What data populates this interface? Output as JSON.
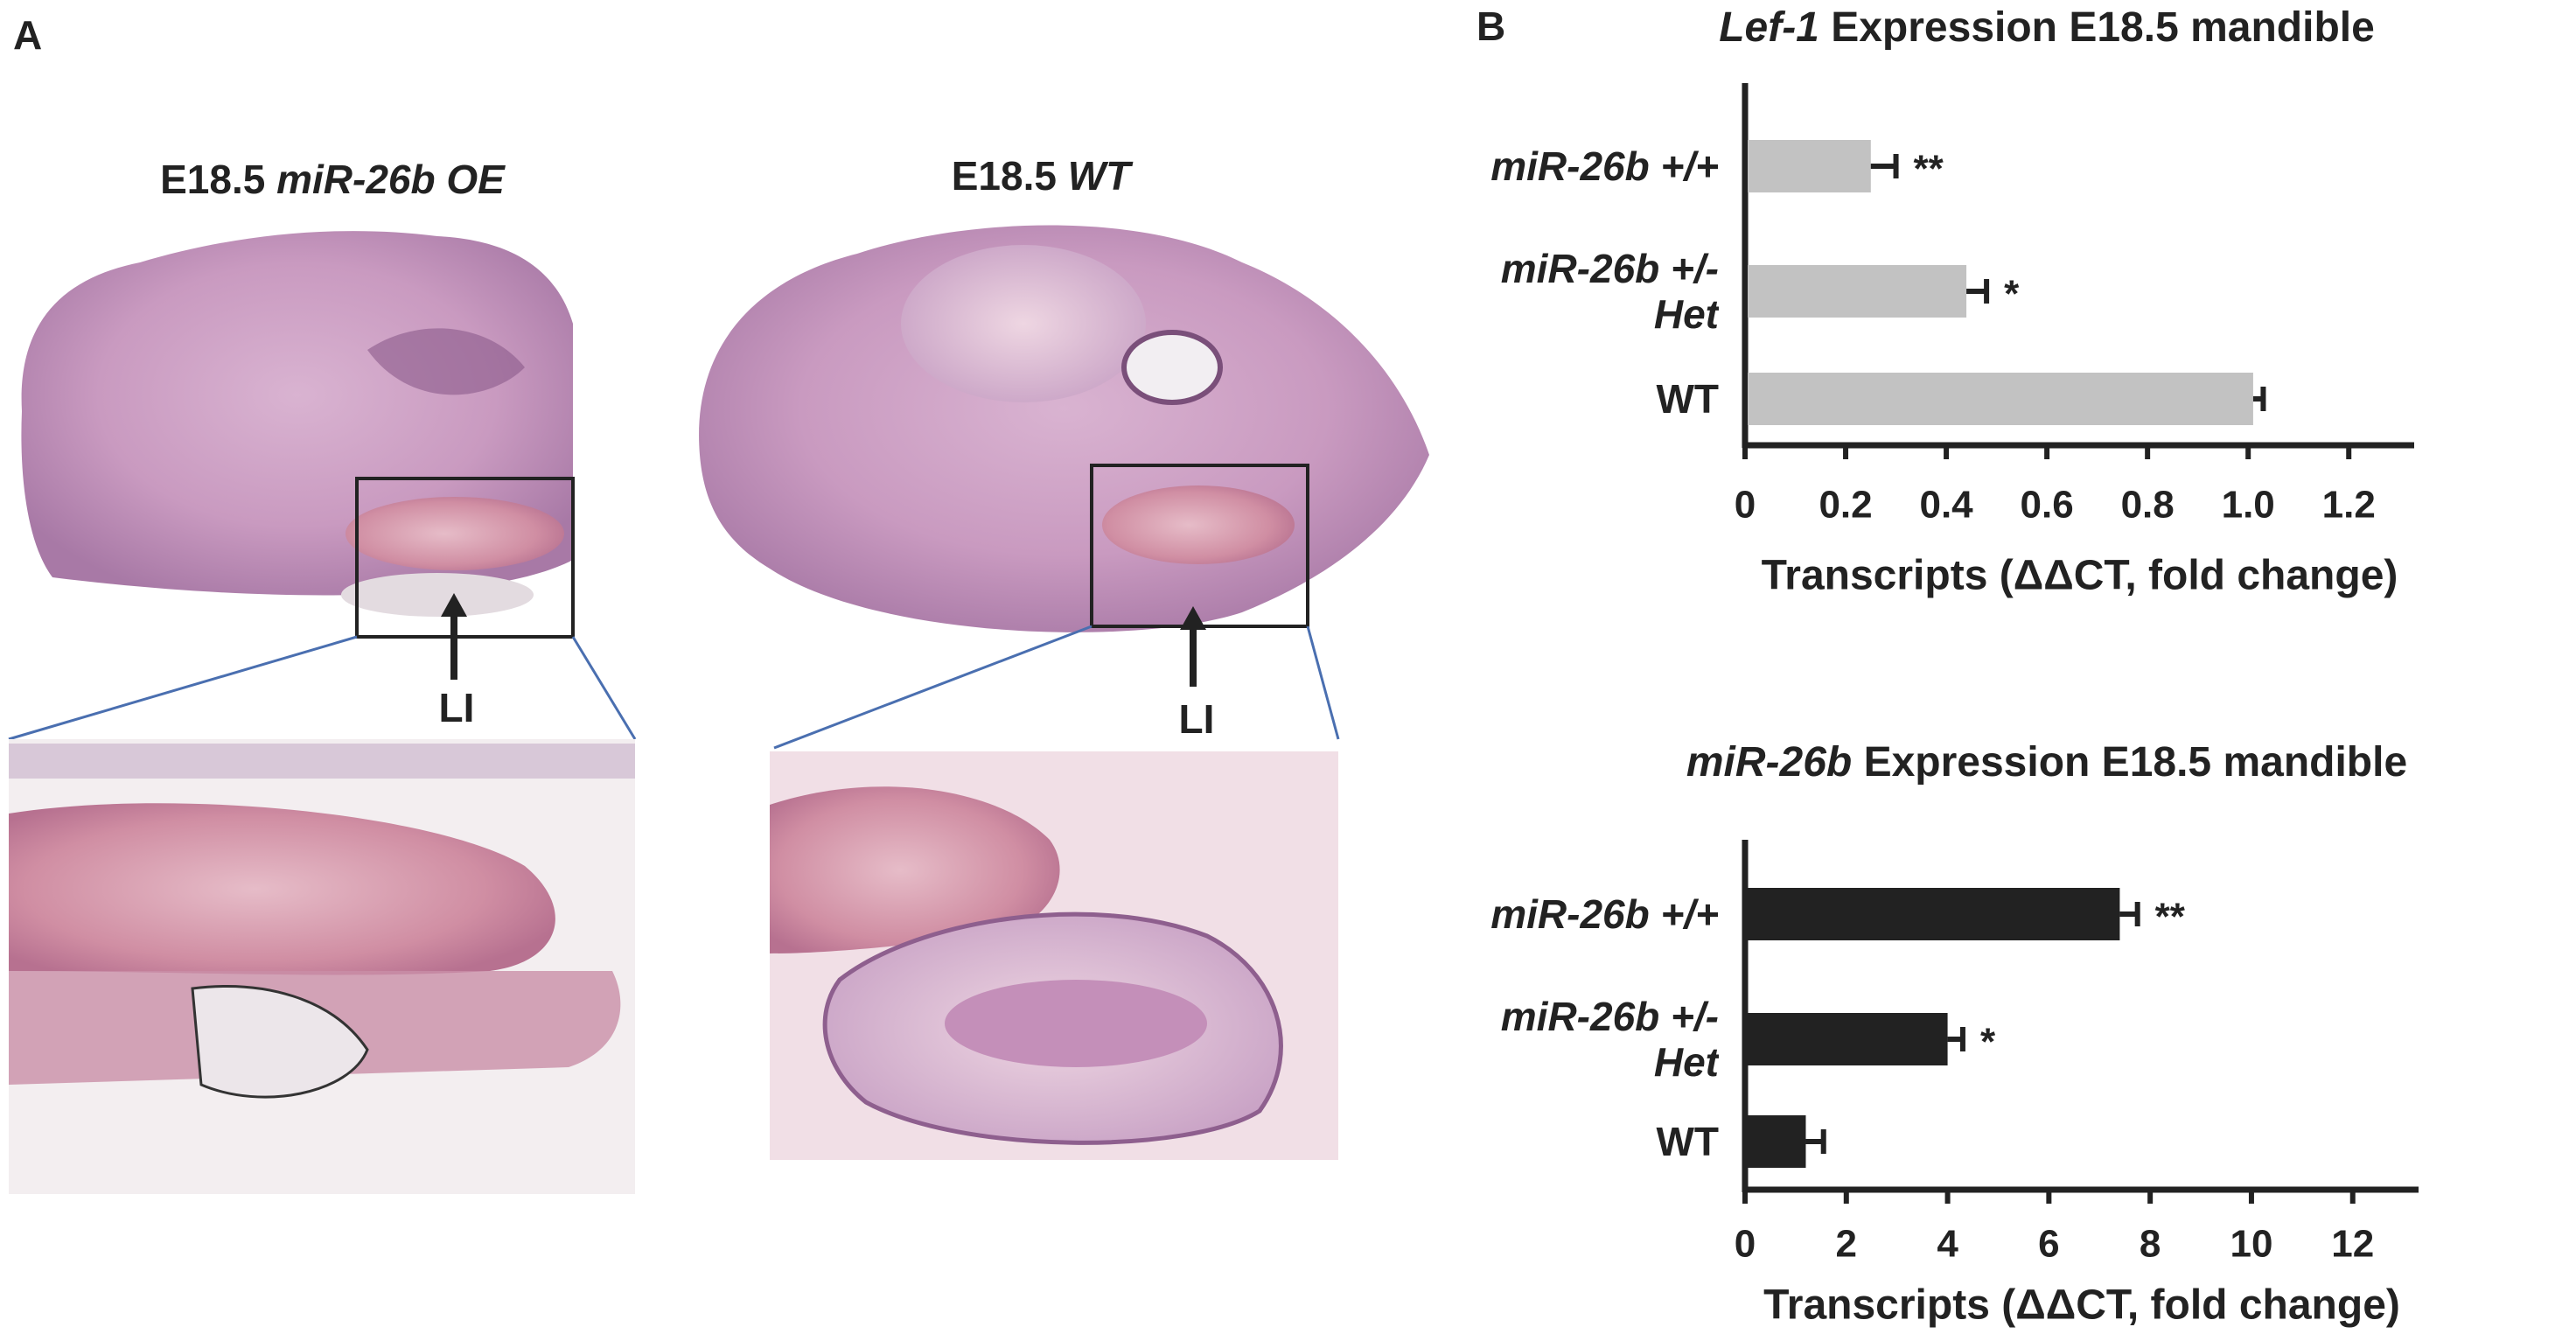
{
  "panel_a": {
    "label": "A",
    "images": [
      {
        "title": "E18.5",
        "title_italic": "miR-26b OE",
        "arrow_label": "LI"
      },
      {
        "title": "E18.5",
        "title_italic": "WT",
        "arrow_label": "LI"
      }
    ]
  },
  "panel_b": {
    "label": "B"
  },
  "chart_data": [
    {
      "type": "hbar",
      "title_italic": "Lef-1",
      "title": "Expression E18.5 mandible",
      "categories": [
        "miR-26b +/+",
        "miR-26b +/- Het",
        "WT"
      ],
      "category_italic": [
        true,
        true,
        false
      ],
      "values": [
        0.25,
        0.44,
        1.01
      ],
      "errors": [
        0.05,
        0.04,
        0.02
      ],
      "significance": [
        "**",
        "*",
        null
      ],
      "color": "#c2c2c2",
      "xlim": [
        0,
        1.33
      ],
      "xticks": [
        0,
        0.2,
        0.4,
        0.6,
        0.8,
        {
          "value": 1,
          "label": "1.0"
        },
        1.2
      ],
      "xlabel": "Transcripts (ΔΔCT, fold change)"
    },
    {
      "type": "hbar",
      "title_italic": "miR-26b",
      "title": "Expression E18.5 mandible",
      "categories": [
        "miR-26b +/+",
        "miR-26b +/- Het",
        "WT"
      ],
      "category_italic": [
        true,
        true,
        false
      ],
      "values": [
        7.4,
        4.0,
        1.2
      ],
      "errors": [
        0.35,
        0.3,
        0.35
      ],
      "significance": [
        "**",
        "*",
        null
      ],
      "color": "#222222",
      "xlim": [
        0,
        13.3
      ],
      "xticks": [
        0,
        2,
        4,
        6,
        8,
        10,
        12
      ],
      "xlabel": "Transcripts (ΔΔCT, fold change)"
    }
  ]
}
